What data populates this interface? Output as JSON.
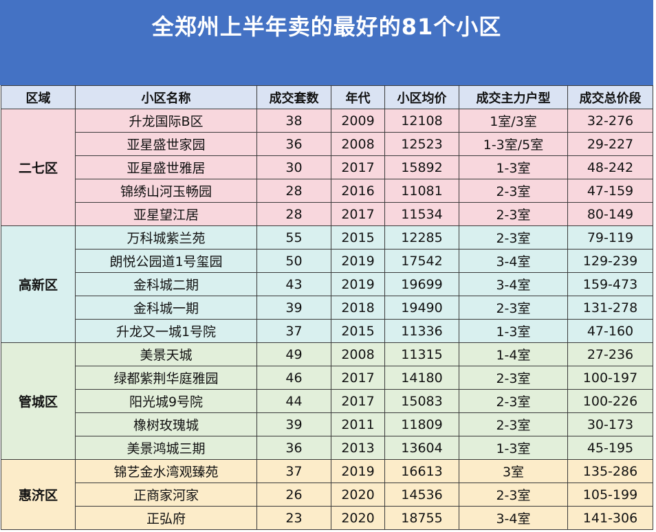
{
  "title": "全郑州上半年卖的最好的81个小区",
  "headers": [
    "区域",
    "小区名称",
    "成交套数",
    "年代",
    "小区均价",
    "成交主力户型",
    "成交总价段"
  ],
  "groups": [
    {
      "district": "二七区",
      "rows": [
        [
          "升龙国际B区",
          "38",
          "2009",
          "12108",
          "1室/3室",
          "32-276"
        ],
        [
          "亚星盛世家园",
          "36",
          "2008",
          "12523",
          "1-3室/5室",
          "29-227"
        ],
        [
          "亚星盛世雅居",
          "30",
          "2017",
          "15892",
          "1-3室",
          "48-242"
        ],
        [
          "锦绣山河玉畅园",
          "28",
          "2016",
          "11081",
          "2-3室",
          "47-159"
        ],
        [
          "亚星望江居",
          "28",
          "2017",
          "11534",
          "2-3室",
          "80-149"
        ]
      ]
    },
    {
      "district": "高新区",
      "rows": [
        [
          "万科城紫兰苑",
          "55",
          "2015",
          "12285",
          "2-3室",
          "79-119"
        ],
        [
          "朗悦公园道1号玺园",
          "50",
          "2019",
          "17542",
          "3-4室",
          "129-239"
        ],
        [
          "金科城二期",
          "43",
          "2019",
          "19699",
          "3-4室",
          "159-473"
        ],
        [
          "金科城一期",
          "39",
          "2018",
          "19490",
          "2-3室",
          "131-278"
        ],
        [
          "升龙又一城1号院",
          "37",
          "2015",
          "11336",
          "1-3室",
          "47-160"
        ]
      ]
    },
    {
      "district": "管城区",
      "rows": [
        [
          "美景天城",
          "49",
          "2008",
          "11315",
          "1-4室",
          "27-236"
        ],
        [
          "绿都紫荆华庭雅园",
          "46",
          "2017",
          "14180",
          "2-3室",
          "100-197"
        ],
        [
          "阳光城9号院",
          "44",
          "2017",
          "15083",
          "2-3室",
          "100-226"
        ],
        [
          "橡树玫瑰城",
          "39",
          "2011",
          "11809",
          "2-3室",
          "30-173"
        ],
        [
          "美景鸿城三期",
          "36",
          "2013",
          "13604",
          "1-3室",
          "45-195"
        ]
      ]
    },
    {
      "district": "惠济区",
      "rows": [
        [
          "锦艺金水湾观臻苑",
          "37",
          "2019",
          "16613",
          "3室",
          "135-286"
        ],
        [
          "正商家河家",
          "26",
          "2020",
          "14536",
          "2-3室",
          "105-199"
        ],
        [
          "正弘府",
          "23",
          "2020",
          "18755",
          "3-4室",
          "141-306"
        ]
      ]
    }
  ]
}
